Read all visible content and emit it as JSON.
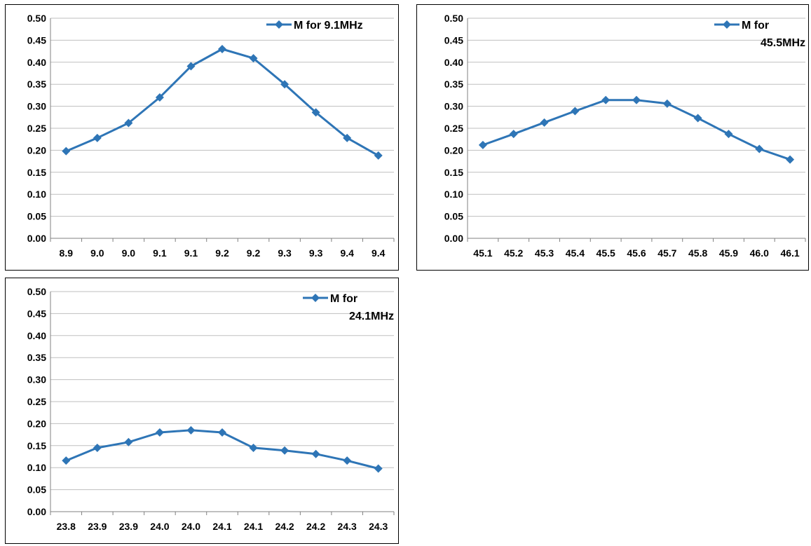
{
  "colors": {
    "series": "#2E75B6",
    "grid": "#BFBFBF",
    "axis": "#808080"
  },
  "chart_data": [
    {
      "type": "line",
      "categories": [
        "8.9",
        "9.0",
        "9.0",
        "9.1",
        "9.1",
        "9.2",
        "9.2",
        "9.3",
        "9.3",
        "9.4",
        "9.4"
      ],
      "series": [
        {
          "name": "M for 9.1MHz",
          "legend_lines": [
            "M for 9.1MHz"
          ],
          "marker": "diamond-icon",
          "values": [
            0.198,
            0.228,
            0.262,
            0.32,
            0.391,
            0.43,
            0.409,
            0.35,
            0.286,
            0.228,
            0.188
          ]
        }
      ],
      "yticks": [
        "0.00",
        "0.05",
        "0.10",
        "0.15",
        "0.20",
        "0.25",
        "0.30",
        "0.35",
        "0.40",
        "0.45",
        "0.50"
      ],
      "ylim": [
        0,
        0.5
      ],
      "grid": true,
      "legend_position": "top-right"
    },
    {
      "type": "line",
      "categories": [
        "45.1",
        "45.2",
        "45.3",
        "45.4",
        "45.5",
        "45.6",
        "45.7",
        "45.8",
        "45.9",
        "46.0",
        "46.1"
      ],
      "series": [
        {
          "name": "M for 45.5MHz",
          "legend_lines": [
            "M for",
            "45.5MHz"
          ],
          "marker": "diamond-icon",
          "values": [
            0.212,
            0.237,
            0.263,
            0.289,
            0.314,
            0.314,
            0.306,
            0.273,
            0.237,
            0.203,
            0.179
          ]
        }
      ],
      "yticks": [
        "0.00",
        "0.05",
        "0.10",
        "0.15",
        "0.20",
        "0.25",
        "0.30",
        "0.35",
        "0.40",
        "0.45",
        "0.50"
      ],
      "ylim": [
        0,
        0.5
      ],
      "grid": true,
      "legend_position": "top-right"
    },
    {
      "type": "line",
      "categories": [
        "23.8",
        "23.9",
        "23.9",
        "24.0",
        "24.0",
        "24.1",
        "24.1",
        "24.2",
        "24.2",
        "24.3",
        "24.3"
      ],
      "series": [
        {
          "name": "M for 24.1MHz",
          "legend_lines": [
            "M for",
            "24.1MHz"
          ],
          "marker": "diamond-icon",
          "values": [
            0.116,
            0.145,
            0.158,
            0.18,
            0.185,
            0.18,
            0.145,
            0.139,
            0.131,
            0.116,
            0.098
          ]
        }
      ],
      "yticks": [
        "0.00",
        "0.05",
        "0.10",
        "0.15",
        "0.20",
        "0.25",
        "0.30",
        "0.35",
        "0.40",
        "0.45",
        "0.50"
      ],
      "ylim": [
        0,
        0.5
      ],
      "grid": true,
      "legend_position": "top-right"
    }
  ]
}
